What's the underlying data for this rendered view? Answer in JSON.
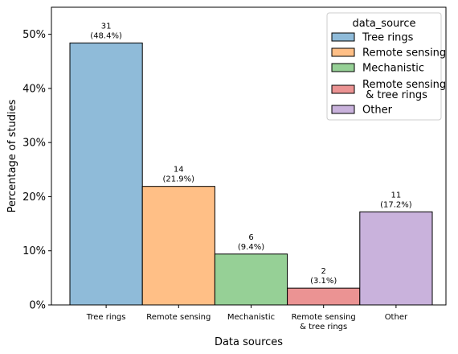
{
  "chart_data": {
    "type": "bar",
    "title": "",
    "xlabel": "Data sources",
    "ylabel": "Percentage of studies",
    "ylim": [
      0,
      55
    ],
    "yticks": [
      0,
      10,
      20,
      30,
      40,
      50
    ],
    "ytick_labels": [
      "0%",
      "10%",
      "20%",
      "30%",
      "40%",
      "50%"
    ],
    "grid": false,
    "legend": {
      "title": "data_source",
      "placement": "top-right"
    },
    "categories": [
      {
        "name": "Tree rings",
        "tick_lines": [
          "Tree rings"
        ],
        "legend_lines": [
          "Tree rings"
        ],
        "count": 31,
        "percent": 48.4,
        "count_label": "31",
        "percent_label": "(48.4%)",
        "color": "#8fbbd9",
        "edge": "#000000"
      },
      {
        "name": "Remote sensing",
        "tick_lines": [
          "Remote sensing"
        ],
        "legend_lines": [
          "Remote sensing"
        ],
        "count": 14,
        "percent": 21.9,
        "count_label": "14",
        "percent_label": "(21.9%)",
        "color": "#ffbf86",
        "edge": "#000000"
      },
      {
        "name": "Mechanistic",
        "tick_lines": [
          "Mechanistic"
        ],
        "legend_lines": [
          "Mechanistic"
        ],
        "count": 6,
        "percent": 9.4,
        "count_label": "6",
        "percent_label": "(9.4%)",
        "color": "#96d096",
        "edge": "#000000"
      },
      {
        "name": "Remote sensing & tree rings",
        "tick_lines": [
          "Remote sensing",
          "& tree rings"
        ],
        "legend_lines": [
          "Remote sensing",
          " & tree rings"
        ],
        "count": 2,
        "percent": 3.1,
        "count_label": "2",
        "percent_label": "(3.1%)",
        "color": "#eb9393",
        "edge": "#000000"
      },
      {
        "name": "Other",
        "tick_lines": [
          "Other"
        ],
        "legend_lines": [
          "Other"
        ],
        "count": 11,
        "percent": 17.2,
        "count_label": "11",
        "percent_label": "(17.2%)",
        "color": "#c9b2dc",
        "edge": "#000000"
      }
    ]
  }
}
